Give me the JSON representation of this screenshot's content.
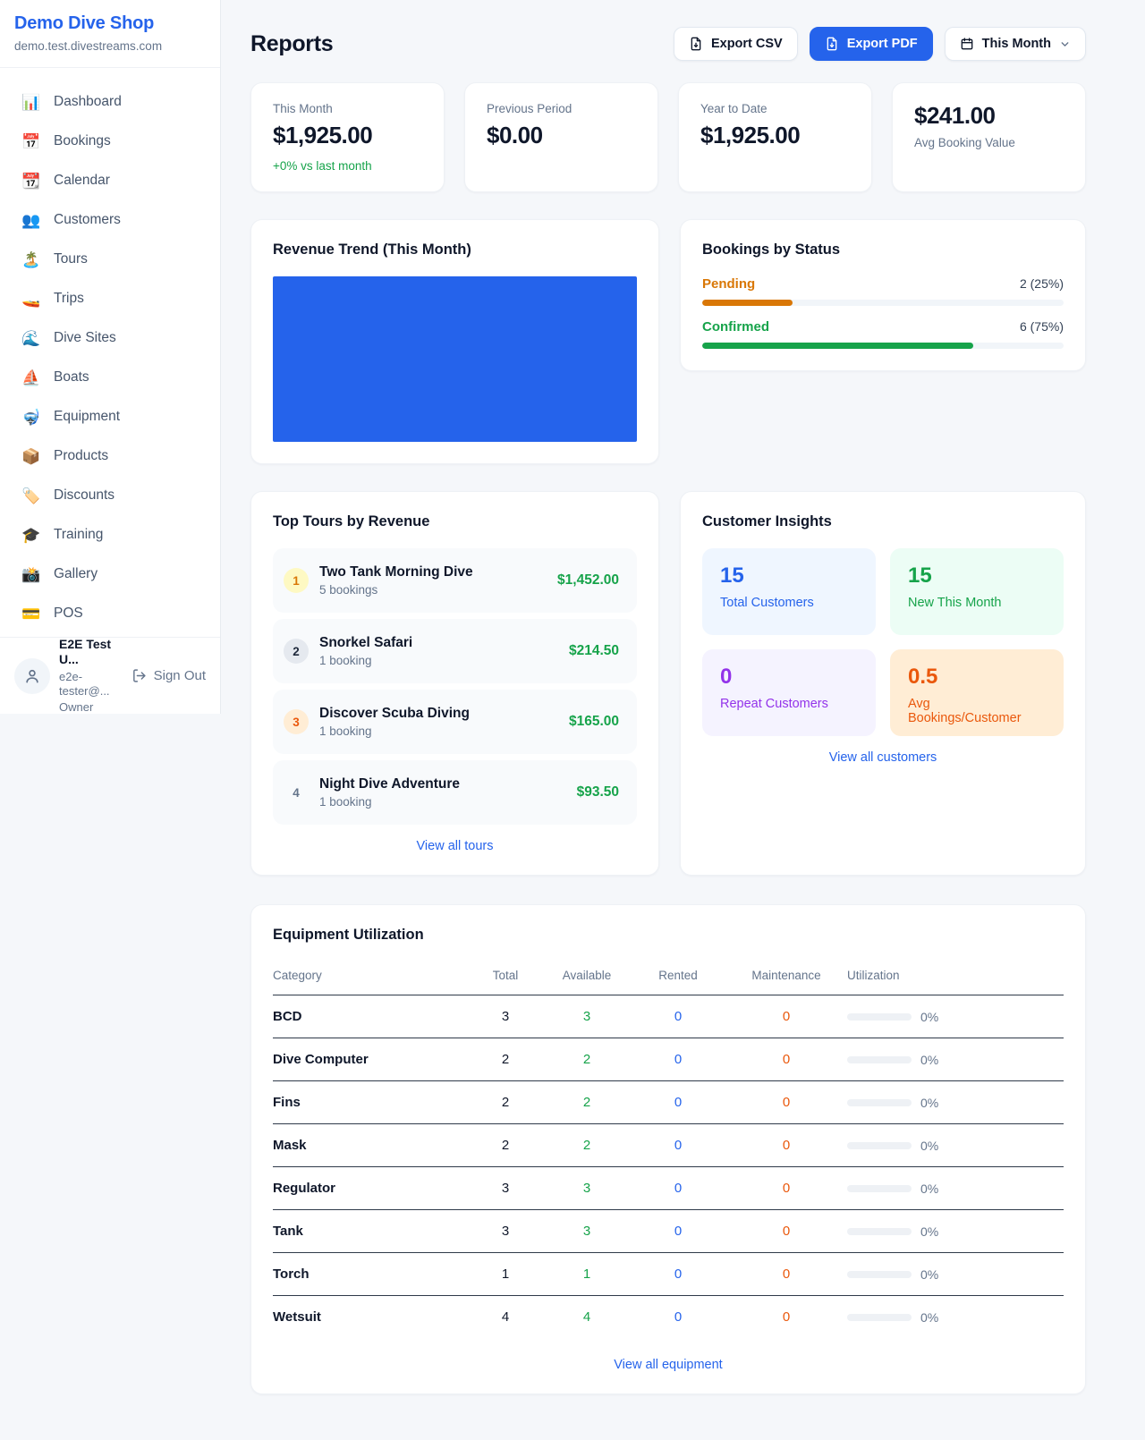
{
  "brand": {
    "name": "Demo Dive Shop",
    "domain": "demo.test.divestreams.com"
  },
  "nav": {
    "items": [
      {
        "icon": "📊",
        "label": "Dashboard"
      },
      {
        "icon": "📅",
        "label": "Bookings"
      },
      {
        "icon": "📆",
        "label": "Calendar"
      },
      {
        "icon": "👥",
        "label": "Customers"
      },
      {
        "icon": "🏝️",
        "label": "Tours"
      },
      {
        "icon": "🚤",
        "label": "Trips"
      },
      {
        "icon": "🌊",
        "label": "Dive Sites"
      },
      {
        "icon": "⛵",
        "label": "Boats"
      },
      {
        "icon": "🤿",
        "label": "Equipment"
      },
      {
        "icon": "📦",
        "label": "Products"
      },
      {
        "icon": "🏷️",
        "label": "Discounts"
      },
      {
        "icon": "🎓",
        "label": "Training"
      },
      {
        "icon": "📸",
        "label": "Gallery"
      },
      {
        "icon": "💳",
        "label": "POS"
      }
    ]
  },
  "user": {
    "name": "E2E Test U...",
    "email": "e2e-tester@...",
    "role": "Owner",
    "sign_out": "Sign Out"
  },
  "header": {
    "title": "Reports",
    "export_csv": "Export CSV",
    "export_pdf": "Export PDF",
    "period": "This Month"
  },
  "stats": {
    "this_month": {
      "label": "This Month",
      "value": "$1,925.00",
      "delta": "+0% vs last month"
    },
    "previous_period": {
      "label": "Previous Period",
      "value": "$0.00"
    },
    "year_to_date": {
      "label": "Year to Date",
      "value": "$1,925.00"
    },
    "avg_booking": {
      "value": "$241.00",
      "label": "Avg Booking Value"
    }
  },
  "revenue_trend": {
    "title": "Revenue Trend (This Month)",
    "fill_color": "#2563eb"
  },
  "bookings_by_status": {
    "title": "Bookings by Status",
    "rows": [
      {
        "label": "Pending",
        "value": "2 (25%)",
        "pct": 25,
        "color": "#d97706"
      },
      {
        "label": "Confirmed",
        "value": "6 (75%)",
        "pct": 75,
        "color": "#16a34a"
      }
    ]
  },
  "top_tours": {
    "title": "Top Tours by Revenue",
    "items": [
      {
        "rank": "1",
        "name": "Two Tank Morning Dive",
        "bookings": "5 bookings",
        "revenue": "$1,452.00"
      },
      {
        "rank": "2",
        "name": "Snorkel Safari",
        "bookings": "1 booking",
        "revenue": "$214.50"
      },
      {
        "rank": "3",
        "name": "Discover Scuba Diving",
        "bookings": "1 booking",
        "revenue": "$165.00"
      },
      {
        "rank": "4",
        "name": "Night Dive Adventure",
        "bookings": "1 booking",
        "revenue": "$93.50"
      }
    ],
    "view_all": "View all tours"
  },
  "customer_insights": {
    "title": "Customer Insights",
    "tiles": [
      {
        "value": "15",
        "label": "Total Customers",
        "theme": "blue"
      },
      {
        "value": "15",
        "label": "New This Month",
        "theme": "green"
      },
      {
        "value": "0",
        "label": "Repeat Customers",
        "theme": "purple"
      },
      {
        "value": "0.5",
        "label": "Avg Bookings/Customer",
        "theme": "orange"
      }
    ],
    "view_all": "View all customers"
  },
  "equipment": {
    "title": "Equipment Utilization",
    "columns": [
      "Category",
      "Total",
      "Available",
      "Rented",
      "Maintenance",
      "Utilization"
    ],
    "rows": [
      {
        "category": "BCD",
        "total": "3",
        "available": "3",
        "rented": "0",
        "maintenance": "0",
        "utilization": "0%",
        "pct": 0
      },
      {
        "category": "Dive Computer",
        "total": "2",
        "available": "2",
        "rented": "0",
        "maintenance": "0",
        "utilization": "0%",
        "pct": 0
      },
      {
        "category": "Fins",
        "total": "2",
        "available": "2",
        "rented": "0",
        "maintenance": "0",
        "utilization": "0%",
        "pct": 0
      },
      {
        "category": "Mask",
        "total": "2",
        "available": "2",
        "rented": "0",
        "maintenance": "0",
        "utilization": "0%",
        "pct": 0
      },
      {
        "category": "Regulator",
        "total": "3",
        "available": "3",
        "rented": "0",
        "maintenance": "0",
        "utilization": "0%",
        "pct": 0
      },
      {
        "category": "Tank",
        "total": "3",
        "available": "3",
        "rented": "0",
        "maintenance": "0",
        "utilization": "0%",
        "pct": 0
      },
      {
        "category": "Torch",
        "total": "1",
        "available": "1",
        "rented": "0",
        "maintenance": "0",
        "utilization": "0%",
        "pct": 0
      },
      {
        "category": "Wetsuit",
        "total": "4",
        "available": "4",
        "rented": "0",
        "maintenance": "0",
        "utilization": "0%",
        "pct": 0
      }
    ],
    "view_all": "View all equipment"
  },
  "colors": {
    "accent": "#2563eb",
    "green": "#16a34a",
    "amber": "#d97706",
    "orange": "#ea580c",
    "purple": "#9333ea"
  },
  "chart_data": [
    {
      "type": "bar",
      "title": "Revenue Trend (This Month)",
      "categories": [
        "This Month"
      ],
      "values": [
        1925
      ],
      "note": "rendered as a single full-width solid blue bar filling the plot area"
    },
    {
      "type": "bar",
      "title": "Bookings by Status",
      "categories": [
        "Pending",
        "Confirmed"
      ],
      "values": [
        2,
        6
      ],
      "percentages": [
        25,
        75
      ]
    }
  ]
}
